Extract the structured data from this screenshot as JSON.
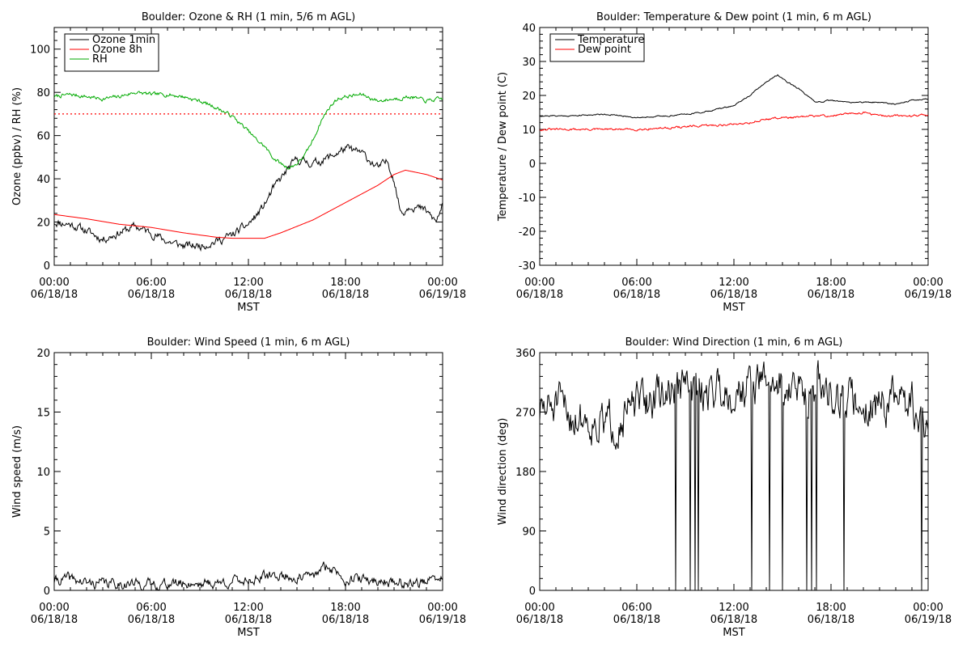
{
  "chart_data": [
    {
      "type": "line",
      "title": "Boulder: Ozone & RH (1 min, 5/6 m AGL)",
      "xlabel": "MST",
      "ylabel": "Ozone (ppbv) / RH (%)",
      "xlim_hours": [
        0,
        24
      ],
      "ylim": [
        0,
        110
      ],
      "yticks": [
        0,
        20,
        40,
        60,
        80,
        100
      ],
      "xticks": [
        {
          "h": 0,
          "time": "00:00",
          "date": "06/18/18"
        },
        {
          "h": 6,
          "time": "06:00",
          "date": "06/18/18"
        },
        {
          "h": 12,
          "time": "12:00",
          "date": "06/18/18"
        },
        {
          "h": 18,
          "time": "18:00",
          "date": "06/18/18"
        },
        {
          "h": 24,
          "time": "00:00",
          "date": "06/19/18"
        }
      ],
      "legend": "top-left",
      "reference_line": {
        "y": 70,
        "color": "#ff0000",
        "style": "dotted"
      },
      "series": [
        {
          "name": "Ozone 1min",
          "color": "#000000",
          "noise": 1.5,
          "seed": 11,
          "points": [
            [
              0,
              20
            ],
            [
              1,
              19
            ],
            [
              2,
              16
            ],
            [
              3,
              12
            ],
            [
              4,
              15
            ],
            [
              5,
              18
            ],
            [
              6,
              15
            ],
            [
              7,
              11
            ],
            [
              8,
              9
            ],
            [
              9,
              9
            ],
            [
              10,
              11
            ],
            [
              11,
              14
            ],
            [
              12,
              19
            ],
            [
              12.5,
              23
            ],
            [
              13,
              28
            ],
            [
              13.5,
              35
            ],
            [
              14,
              40
            ],
            [
              14.5,
              45
            ],
            [
              15,
              49
            ],
            [
              16,
              47
            ],
            [
              17,
              50
            ],
            [
              17.5,
              52
            ],
            [
              18,
              54
            ],
            [
              19,
              52
            ],
            [
              20,
              45
            ],
            [
              20.6,
              48
            ],
            [
              21,
              40
            ],
            [
              21.3,
              28
            ],
            [
              21.5,
              24
            ],
            [
              22,
              28
            ],
            [
              23,
              25
            ],
            [
              23.6,
              20
            ],
            [
              24,
              28
            ]
          ]
        },
        {
          "name": "Ozone 8h",
          "color": "#ff0000",
          "noise": 0,
          "seed": 0,
          "points": [
            [
              0,
              23.5
            ],
            [
              2,
              21.5
            ],
            [
              4,
              19
            ],
            [
              6,
              17.5
            ],
            [
              8,
              15
            ],
            [
              10,
              13
            ],
            [
              11,
              12.5
            ],
            [
              13,
              12.5
            ],
            [
              14,
              15
            ],
            [
              16,
              21
            ],
            [
              18,
              29
            ],
            [
              20,
              37
            ],
            [
              21,
              42
            ],
            [
              21.7,
              44
            ],
            [
              23,
              42
            ],
            [
              24,
              39.5
            ]
          ]
        },
        {
          "name": "RH",
          "color": "#00aa00",
          "noise": 0.7,
          "seed": 7,
          "points": [
            [
              0,
              78
            ],
            [
              1,
              79
            ],
            [
              2,
              78
            ],
            [
              3,
              77
            ],
            [
              4,
              78
            ],
            [
              5,
              80
            ],
            [
              6,
              79
            ],
            [
              7,
              79
            ],
            [
              8,
              78
            ],
            [
              9,
              76
            ],
            [
              10,
              73
            ],
            [
              11,
              69
            ],
            [
              12,
              62
            ],
            [
              12.5,
              58
            ],
            [
              13,
              55
            ],
            [
              13.5,
              50
            ],
            [
              14,
              47
            ],
            [
              14.5,
              45
            ],
            [
              15,
              47
            ],
            [
              15.5,
              51
            ],
            [
              16,
              58
            ],
            [
              16.5,
              67
            ],
            [
              17,
              73
            ],
            [
              17.5,
              77
            ],
            [
              18,
              78
            ],
            [
              19,
              79
            ],
            [
              20,
              76
            ],
            [
              21,
              77
            ],
            [
              22,
              78
            ],
            [
              23,
              76
            ],
            [
              24,
              77
            ]
          ]
        }
      ]
    },
    {
      "type": "line",
      "title": "Boulder: Temperature & Dew point (1 min, 6 m AGL)",
      "xlabel": "MST",
      "ylabel": "Temperature / Dew point (C)",
      "xlim_hours": [
        0,
        24
      ],
      "ylim": [
        -30,
        40
      ],
      "yticks": [
        -30,
        -20,
        -10,
        0,
        10,
        20,
        30,
        40
      ],
      "xticks": [
        {
          "h": 0,
          "time": "00:00",
          "date": "06/18/18"
        },
        {
          "h": 6,
          "time": "06:00",
          "date": "06/18/18"
        },
        {
          "h": 12,
          "time": "12:00",
          "date": "06/18/18"
        },
        {
          "h": 18,
          "time": "18:00",
          "date": "06/18/18"
        },
        {
          "h": 24,
          "time": "00:00",
          "date": "06/19/18"
        }
      ],
      "legend": "top-left",
      "series": [
        {
          "name": "Temperature",
          "color": "#000000",
          "noise": 0.15,
          "seed": 21,
          "points": [
            [
              0,
              14
            ],
            [
              2,
              14
            ],
            [
              4,
              14.5
            ],
            [
              6,
              13.5
            ],
            [
              8,
              14
            ],
            [
              10,
              15
            ],
            [
              11,
              16
            ],
            [
              12,
              17
            ],
            [
              13,
              20
            ],
            [
              14,
              24
            ],
            [
              14.7,
              26
            ],
            [
              15.3,
              24
            ],
            [
              16,
              22
            ],
            [
              16.5,
              20
            ],
            [
              17,
              18
            ],
            [
              18,
              18.5
            ],
            [
              19,
              18
            ],
            [
              20,
              18
            ],
            [
              21,
              18
            ],
            [
              22,
              17.5
            ],
            [
              23,
              18.5
            ],
            [
              24,
              19
            ]
          ]
        },
        {
          "name": "Dew point",
          "color": "#ff0000",
          "noise": 0.25,
          "seed": 31,
          "points": [
            [
              0,
              10
            ],
            [
              2,
              10
            ],
            [
              4,
              10
            ],
            [
              6,
              10
            ],
            [
              8,
              10.5
            ],
            [
              10,
              11
            ],
            [
              12,
              11.5
            ],
            [
              13,
              12
            ],
            [
              14,
              13
            ],
            [
              15,
              13.5
            ],
            [
              16,
              13.5
            ],
            [
              17,
              14
            ],
            [
              18,
              14
            ],
            [
              19,
              14.5
            ],
            [
              20,
              15
            ],
            [
              21,
              14
            ],
            [
              22,
              14
            ],
            [
              23,
              14
            ],
            [
              24,
              14.5
            ]
          ]
        }
      ]
    },
    {
      "type": "line",
      "title": "Boulder: Wind Speed (1 min, 6 m AGL)",
      "xlabel": "MST",
      "ylabel": "Wind speed (m/s)",
      "xlim_hours": [
        0,
        24
      ],
      "ylim": [
        0,
        20
      ],
      "yticks": [
        0,
        5,
        10,
        15,
        20
      ],
      "xticks": [
        {
          "h": 0,
          "time": "00:00",
          "date": "06/18/18"
        },
        {
          "h": 6,
          "time": "06:00",
          "date": "06/18/18"
        },
        {
          "h": 12,
          "time": "12:00",
          "date": "06/18/18"
        },
        {
          "h": 18,
          "time": "18:00",
          "date": "06/18/18"
        },
        {
          "h": 24,
          "time": "00:00",
          "date": "06/19/18"
        }
      ],
      "legend": "none",
      "series": [
        {
          "color": "#000000",
          "noise": 0.35,
          "seed": 41,
          "points": [
            [
              0,
              0.8
            ],
            [
              1,
              1
            ],
            [
              2,
              0.6
            ],
            [
              4,
              0.6
            ],
            [
              6,
              0.5
            ],
            [
              8,
              0.6
            ],
            [
              10,
              0.6
            ],
            [
              12,
              0.9
            ],
            [
              13,
              1.1
            ],
            [
              14,
              1.3
            ],
            [
              15,
              1
            ],
            [
              16,
              1.2
            ],
            [
              16.8,
              2
            ],
            [
              17.3,
              1.7
            ],
            [
              18,
              1
            ],
            [
              20,
              0.8
            ],
            [
              22,
              0.6
            ],
            [
              24,
              0.9
            ]
          ]
        }
      ]
    },
    {
      "type": "line",
      "title": "Boulder: Wind Direction (1 min, 6 m AGL)",
      "xlabel": "MST",
      "ylabel": "Wind direction (deg)",
      "xlim_hours": [
        0,
        24
      ],
      "ylim": [
        0,
        360
      ],
      "yticks": [
        0,
        90,
        180,
        270,
        360
      ],
      "xticks": [
        {
          "h": 0,
          "time": "00:00",
          "date": "06/18/18"
        },
        {
          "h": 6,
          "time": "06:00",
          "date": "06/18/18"
        },
        {
          "h": 12,
          "time": "12:00",
          "date": "06/18/18"
        },
        {
          "h": 18,
          "time": "18:00",
          "date": "06/18/18"
        },
        {
          "h": 24,
          "time": "00:00",
          "date": "06/19/18"
        }
      ],
      "legend": "none",
      "series": [
        {
          "color": "#000000",
          "noise": 25,
          "seed": 51,
          "drops": [
            8.4,
            9.3,
            9.6,
            9.8,
            13.1,
            14.2,
            15.0,
            16.5,
            16.8,
            17.1,
            18.8,
            23.6
          ],
          "points": [
            [
              0,
              270
            ],
            [
              1,
              280
            ],
            [
              2,
              265
            ],
            [
              3,
              260
            ],
            [
              4,
              250
            ],
            [
              5,
              260
            ],
            [
              6,
              280
            ],
            [
              7,
              290
            ],
            [
              8,
              300
            ],
            [
              9,
              310
            ],
            [
              10,
              300
            ],
            [
              11,
              310
            ],
            [
              12,
              300
            ],
            [
              13,
              310
            ],
            [
              14,
              320
            ],
            [
              15,
              310
            ],
            [
              16,
              300
            ],
            [
              17,
              310
            ],
            [
              18,
              300
            ],
            [
              19,
              290
            ],
            [
              20,
              280
            ],
            [
              21,
              280
            ],
            [
              22,
              290
            ],
            [
              23,
              280
            ],
            [
              24,
              240
            ]
          ]
        }
      ]
    }
  ]
}
